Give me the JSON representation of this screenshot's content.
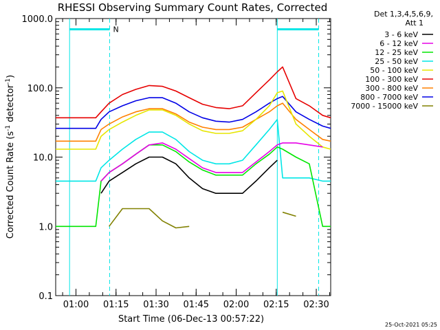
{
  "chart_data": {
    "type": "line",
    "title": "RHESSI Observing Summary Count Rates, Corrected",
    "ylabel_main": "Corrected Count Rate (s",
    "ylabel_sup1": "-1",
    "ylabel_mid": " detector",
    "ylabel_sup2": "-1",
    "ylabel_end": ")",
    "xlabel": "Start Time (06-Dec-13 00:57:22)",
    "x_unit": "minutes after 00:57:22",
    "xlim": [
      -5,
      98
    ],
    "ylim": [
      0.1,
      1000
    ],
    "y_scale": "log",
    "x_ticks": [
      {
        "label": "01:00",
        "x": 2.6
      },
      {
        "label": "01:15",
        "x": 17.6
      },
      {
        "label": "01:30",
        "x": 32.6
      },
      {
        "label": "01:45",
        "x": 47.6
      },
      {
        "label": "02:00",
        "x": 62.6
      },
      {
        "label": "02:15",
        "x": 77.6
      },
      {
        "label": "02:30",
        "x": 92.6
      }
    ],
    "y_ticks": [
      {
        "label": "0.1",
        "y": 0.1
      },
      {
        "label": "1.0",
        "y": 1
      },
      {
        "label": "10.0",
        "y": 10
      },
      {
        "label": "100.0",
        "y": 100
      },
      {
        "label": "1000.0",
        "y": 1000
      }
    ],
    "legend_header": [
      "Det 1,3,4,5,6,9,",
      "Att 1"
    ],
    "legend_placement": "right, outside plot",
    "series": [
      {
        "name": "3 - 6 keV",
        "color": "#000000",
        "x": [
          -5,
          10,
          12,
          15,
          20,
          25,
          30,
          35,
          40,
          45,
          50,
          55,
          60,
          65,
          70,
          75,
          78,
          80,
          85,
          90,
          95,
          98
        ],
        "y": [
          null,
          null,
          3.0,
          4.5,
          6.0,
          8.0,
          10.0,
          10.0,
          8.0,
          5.0,
          3.5,
          3.0,
          3.0,
          3.0,
          4.5,
          7.0,
          9.0,
          null,
          null,
          null,
          null,
          null
        ]
      },
      {
        "name": "6 - 12 keV",
        "color": "#e600e6",
        "x": [
          -5,
          10,
          12,
          15,
          20,
          25,
          30,
          35,
          40,
          45,
          50,
          55,
          60,
          65,
          70,
          75,
          78,
          80,
          85,
          90,
          95,
          98
        ],
        "y": [
          null,
          null,
          4.5,
          6.0,
          8.0,
          11.0,
          15.0,
          16.0,
          13.0,
          9.5,
          7.0,
          6.0,
          6.0,
          6.0,
          8.5,
          12.0,
          15.0,
          16.0,
          16.0,
          15.0,
          14.0,
          null
        ]
      },
      {
        "name": "12 - 25 keV",
        "color": "#00e600",
        "x": [
          -5,
          10,
          12,
          15,
          20,
          25,
          30,
          35,
          40,
          45,
          50,
          55,
          60,
          65,
          70,
          75,
          78,
          80,
          85,
          90,
          95,
          98
        ],
        "y": [
          1.0,
          1.0,
          4.5,
          6.0,
          8.0,
          11.0,
          15.0,
          15.0,
          12.0,
          8.5,
          6.5,
          5.5,
          5.5,
          5.5,
          8.0,
          11.0,
          14.0,
          13.0,
          10.0,
          8.0,
          1.0,
          1.0
        ]
      },
      {
        "name": "25 - 50 keV",
        "color": "#00e6e6",
        "x": [
          -5,
          10,
          12,
          15,
          20,
          25,
          30,
          35,
          40,
          45,
          50,
          55,
          60,
          65,
          70,
          75,
          78,
          80,
          85,
          90,
          95,
          98
        ],
        "y": [
          4.5,
          4.5,
          7.0,
          9.0,
          13.0,
          18.0,
          23.0,
          23.0,
          18.0,
          12.0,
          9.0,
          8.0,
          8.0,
          9.0,
          15.0,
          25.0,
          35.0,
          5.0,
          5.0,
          5.0,
          4.5,
          4.5
        ]
      },
      {
        "name": "50 - 100 keV",
        "color": "#e6e600",
        "x": [
          -5,
          10,
          12,
          15,
          20,
          25,
          30,
          35,
          40,
          45,
          50,
          55,
          60,
          65,
          70,
          75,
          78,
          80,
          85,
          90,
          95,
          98
        ],
        "y": [
          13.0,
          13.0,
          20.0,
          25.0,
          32.0,
          40.0,
          48.0,
          48.0,
          40.0,
          30.0,
          24.0,
          22.0,
          22.0,
          24.0,
          35.0,
          55.0,
          85.0,
          90.0,
          30.0,
          20.0,
          14.0,
          13.0
        ]
      },
      {
        "name": "100 - 300 keV",
        "color": "#e60000",
        "x": [
          -5,
          10,
          12,
          15,
          20,
          25,
          30,
          35,
          40,
          45,
          50,
          55,
          60,
          65,
          70,
          75,
          78,
          80,
          85,
          90,
          95,
          98
        ],
        "y": [
          37.0,
          37.0,
          45.0,
          60.0,
          80.0,
          95.0,
          108.0,
          105.0,
          90.0,
          72.0,
          58.0,
          52.0,
          50.0,
          55.0,
          85.0,
          130.0,
          170.0,
          200.0,
          70.0,
          55.0,
          40.0,
          37.0
        ]
      },
      {
        "name": "300 - 800 keV",
        "color": "#ff8000",
        "x": [
          -5,
          10,
          12,
          15,
          20,
          25,
          30,
          35,
          40,
          45,
          50,
          55,
          60,
          65,
          70,
          75,
          78,
          80,
          85,
          90,
          95,
          98
        ],
        "y": [
          17.0,
          17.0,
          25.0,
          30.0,
          38.0,
          45.0,
          50.0,
          50.0,
          42.0,
          32.0,
          27.0,
          25.0,
          25.0,
          27.0,
          35.0,
          45.0,
          55.0,
          60.0,
          35.0,
          25.0,
          18.0,
          17.0
        ]
      },
      {
        "name": "800 - 7000 keV",
        "color": "#0000e6",
        "x": [
          -5,
          10,
          12,
          15,
          20,
          25,
          30,
          35,
          40,
          45,
          50,
          55,
          60,
          65,
          70,
          75,
          78,
          80,
          85,
          90,
          95,
          98
        ],
        "y": [
          26.0,
          26.0,
          35.0,
          45.0,
          55.0,
          65.0,
          72.0,
          72.0,
          60.0,
          45.0,
          37.0,
          33.0,
          32.0,
          35.0,
          45.0,
          60.0,
          70.0,
          75.0,
          45.0,
          35.0,
          28.0,
          26.0
        ]
      },
      {
        "name": "7000 - 15000 keV",
        "color": "#808000",
        "x": [
          -5,
          10,
          12,
          15,
          20,
          25,
          30,
          35,
          40,
          45,
          50,
          55,
          60,
          65,
          70,
          75,
          78,
          80,
          85,
          90,
          95,
          98
        ],
        "y": [
          null,
          null,
          null,
          1.0,
          1.8,
          1.8,
          1.8,
          1.2,
          0.95,
          1.0,
          null,
          null,
          null,
          null,
          null,
          null,
          null,
          1.6,
          1.4,
          null,
          null,
          null
        ]
      }
    ],
    "vertical_markers": [
      {
        "x": 0.2,
        "style": "solid"
      },
      {
        "x": 15.2,
        "style": "dashed"
      },
      {
        "x": 78.0,
        "style": "solid"
      },
      {
        "x": 93.5,
        "style": "dashed"
      }
    ],
    "top_bars": [
      {
        "x_start": 0.2,
        "x_end": 15.2,
        "y": 700
      },
      {
        "x_start": 78.0,
        "x_end": 93.5,
        "y": 700
      }
    ],
    "top_annotation": {
      "text": "N",
      "x": 16.5,
      "y": 700
    },
    "timestamp": "25-Oct-2021 05:25",
    "colors": {
      "axes": "#000000",
      "markers": "#00e6e6",
      "background": "#ffffff"
    }
  }
}
